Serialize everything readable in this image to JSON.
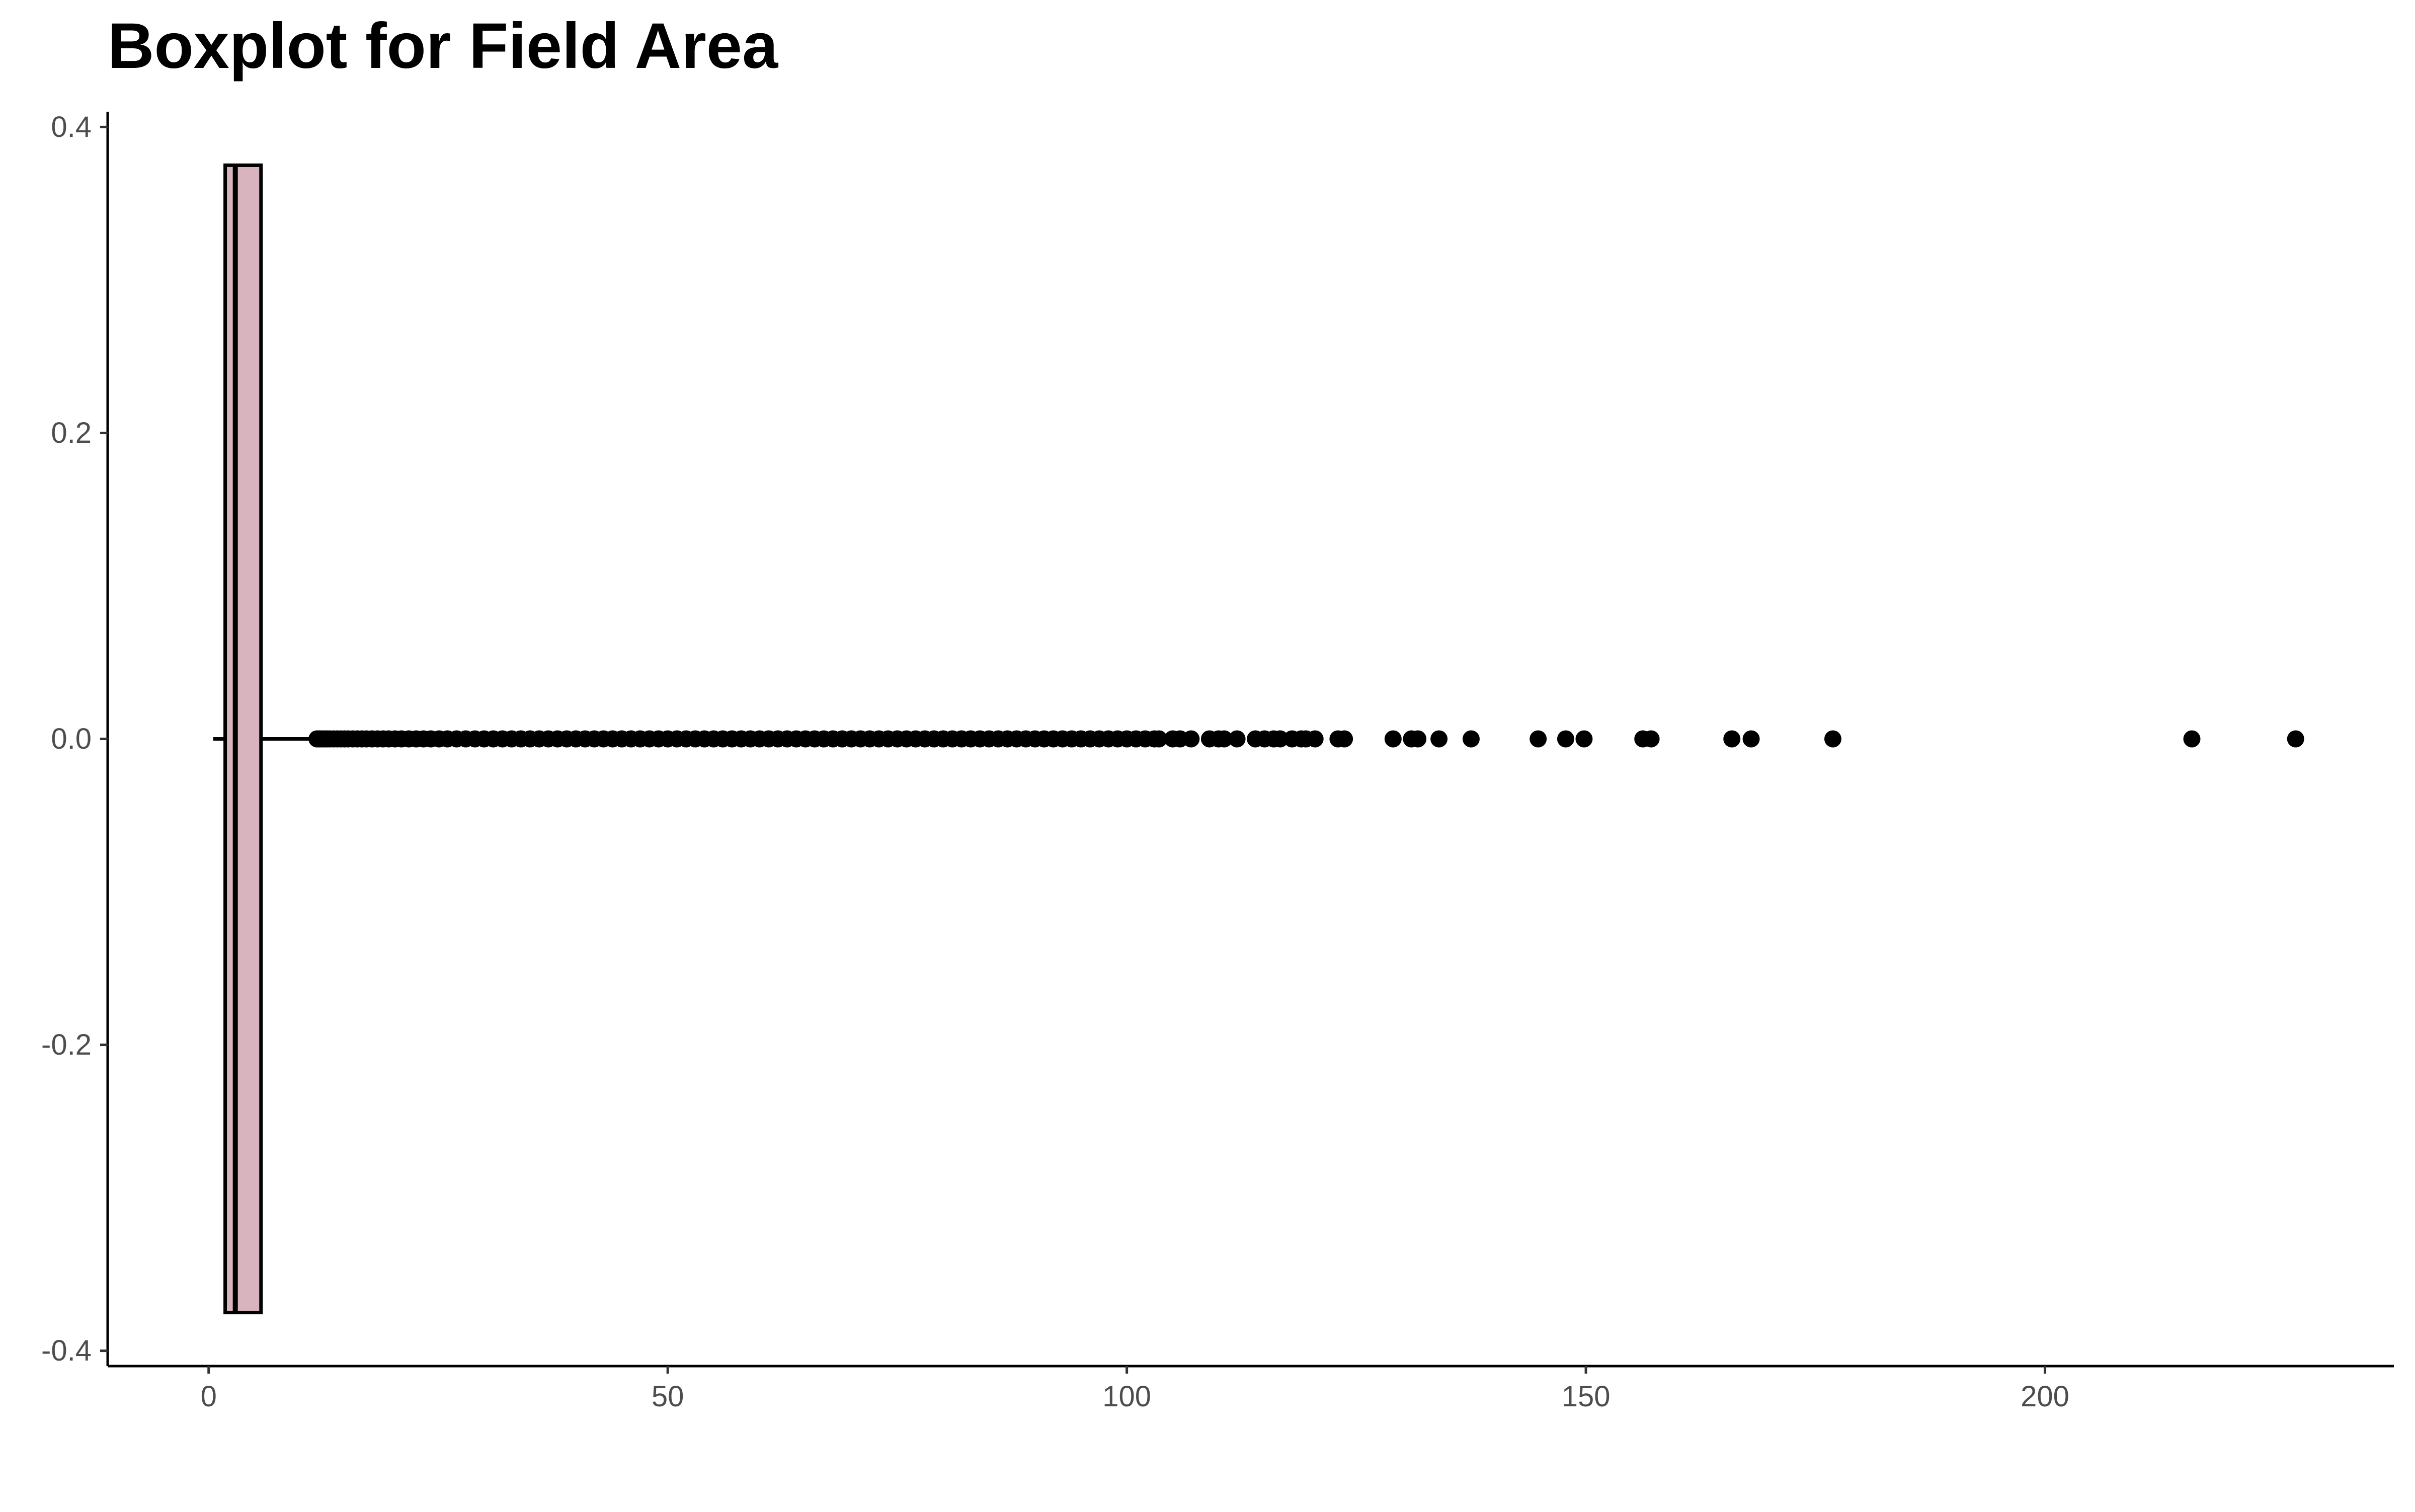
{
  "chart_data": {
    "type": "boxplot",
    "title": "Boxplot for Field Area",
    "xlabel": "",
    "ylabel": "",
    "orientation": "horizontal",
    "xlim": [
      -11,
      238
    ],
    "ylim": [
      -0.41,
      0.41
    ],
    "x_ticks": [
      0,
      50,
      100,
      150,
      200
    ],
    "y_ticks": [
      0.4,
      0.2,
      0.0,
      -0.2,
      -0.4
    ],
    "x_tick_labels": [
      "0",
      "50",
      "100",
      "150",
      "200"
    ],
    "y_tick_labels": [
      "0.4",
      "0.2",
      "0.0",
      "-0.2",
      "-0.4"
    ],
    "grid": false,
    "legend": "none",
    "box_color": "#d8b4be",
    "stats": {
      "min": 0.5,
      "q1": 1.8,
      "median": 2.9,
      "q3": 5.7,
      "whisker_high": 11.5,
      "box_y_range": [
        -0.375,
        0.375
      ]
    },
    "outliers": [
      11.8,
      12.0,
      12.3,
      12.6,
      12.9,
      13.2,
      13.6,
      14.0,
      14.4,
      14.8,
      15.2,
      15.7,
      16.2,
      16.7,
      17.2,
      17.8,
      18.4,
      19.0,
      19.6,
      20.3,
      21.0,
      21.8,
      22.6,
      23.4,
      24.2,
      25.1,
      26.0,
      27.0,
      28.0,
      29.0,
      30.0,
      31.0,
      32.0,
      33.0,
      34.0,
      35.0,
      36.0,
      37.0,
      38.0,
      39.0,
      40.0,
      41.0,
      42.0,
      43.0,
      44.0,
      45.0,
      46.0,
      47.0,
      48.0,
      49.0,
      50.0,
      51.0,
      52.0,
      53.0,
      54.0,
      55.0,
      56.0,
      57.0,
      58.0,
      59.0,
      60.0,
      61.0,
      62.0,
      63.0,
      64.0,
      65.0,
      66.0,
      67.0,
      68.0,
      69.0,
      70.0,
      71.0,
      72.0,
      73.0,
      74.0,
      75.0,
      76.0,
      77.0,
      78.0,
      79.0,
      80.0,
      81.0,
      82.0,
      83.0,
      84.0,
      85.0,
      86.0,
      87.0,
      88.0,
      89.0,
      90.0,
      91.0,
      92.0,
      93.0,
      94.0,
      95.0,
      96.0,
      97.0,
      98.0,
      99.0,
      100.0,
      101.0,
      102.0,
      103.0,
      103.5,
      105.0,
      105.8,
      107.0,
      109.0,
      110.0,
      110.6,
      112.0,
      114.0,
      115.0,
      116.0,
      116.7,
      118.0,
      119.0,
      119.5,
      120.5,
      123.0,
      123.7,
      129.0,
      131.0,
      131.7,
      134.0,
      137.5,
      144.8,
      147.8,
      149.8,
      156.2,
      157.1,
      165.9,
      168.0,
      176.9,
      216.0,
      227.3
    ]
  }
}
